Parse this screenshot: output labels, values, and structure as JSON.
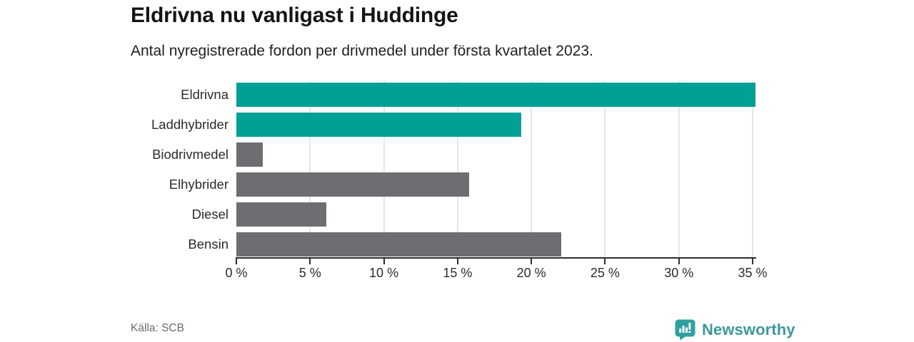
{
  "header": {
    "title": "Eldrivna nu vanligast i Huddinge",
    "subtitle": "Antal nyregistrerade fordon per drivmedel under första kvartalet 2023."
  },
  "chart_data": {
    "type": "bar",
    "orientation": "horizontal",
    "title": "Eldrivna nu vanligast i Huddinge",
    "subtitle": "Antal nyregistrerade fordon per drivmedel under första kvartalet 2023.",
    "categories": [
      "Eldrivna",
      "Laddhybrider",
      "Biodrivmedel",
      "Elhybrider",
      "Diesel",
      "Bensin"
    ],
    "values": [
      35.2,
      19.3,
      1.8,
      15.8,
      6.1,
      22.0
    ],
    "unit": "%",
    "highlight": [
      true,
      true,
      false,
      false,
      false,
      false
    ],
    "colors": {
      "highlight": "#00A096",
      "default": "#6F6D72"
    },
    "xlim": [
      0,
      35
    ],
    "x_ticks": [
      0,
      5,
      10,
      15,
      20,
      25,
      30,
      35
    ],
    "x_tick_suffix": " %",
    "grid": "vertical-only",
    "legend": "none"
  },
  "footer": {
    "source": "Källa: SCB",
    "brand": "Newsworthy"
  },
  "icons": {
    "brand_icon": "bar-chart-speech-bubble-icon",
    "brand_icon_color": "#2fa0a0"
  }
}
